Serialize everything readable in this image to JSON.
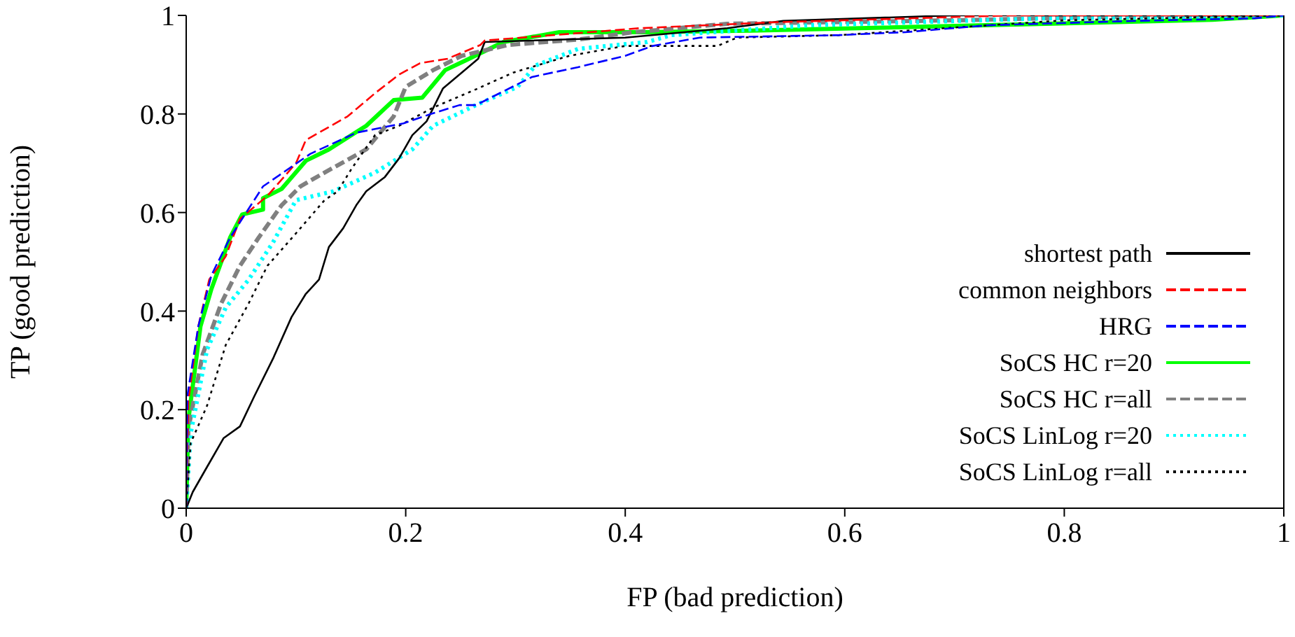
{
  "chart_data": {
    "type": "line",
    "xlabel": "FP (bad prediction)",
    "ylabel": "TP (good prediction)",
    "xlim": [
      0,
      1
    ],
    "ylim": [
      0,
      1
    ],
    "xticks": [
      0,
      0.2,
      0.4,
      0.6,
      0.8,
      1
    ],
    "yticks": [
      0,
      0.2,
      0.4,
      0.6,
      0.8,
      1
    ],
    "grid": false,
    "legend": "right",
    "marker": "none",
    "series": [
      {
        "name": "shortest path",
        "color": "#000000",
        "line_style": "solid",
        "x": [
          0,
          0.006,
          0.017,
          0.034,
          0.049,
          0.062,
          0.079,
          0.096,
          0.109,
          0.121,
          0.13,
          0.143,
          0.155,
          0.164,
          0.181,
          0.194,
          0.206,
          0.219,
          0.234,
          0.266,
          0.272,
          0.4,
          0.493,
          0.544,
          0.7,
          1
        ],
        "values": [
          0,
          0.033,
          0.076,
          0.142,
          0.166,
          0.227,
          0.303,
          0.388,
          0.435,
          0.464,
          0.53,
          0.568,
          0.615,
          0.643,
          0.672,
          0.71,
          0.757,
          0.785,
          0.852,
          0.912,
          0.946,
          0.955,
          0.974,
          0.989,
          1,
          1
        ]
      },
      {
        "name": "common neighbors",
        "color": "#ff0000",
        "line_style": "dashed",
        "x": [
          0,
          0.002,
          0.011,
          0.021,
          0.036,
          0.049,
          0.074,
          0.1,
          0.109,
          0.147,
          0.172,
          0.194,
          0.213,
          0.238,
          0.268,
          0.272,
          0.413,
          0.535,
          0.75,
          1
        ],
        "values": [
          0,
          0.218,
          0.369,
          0.464,
          0.511,
          0.587,
          0.634,
          0.7,
          0.747,
          0.795,
          0.842,
          0.88,
          0.903,
          0.912,
          0.94,
          0.949,
          0.974,
          0.986,
          1,
          1
        ]
      },
      {
        "name": "HRG",
        "color": "#0000ff",
        "line_style": "dashed",
        "x": [
          0,
          0.001,
          0.011,
          0.023,
          0.04,
          0.07,
          0.085,
          0.113,
          0.155,
          0.198,
          0.223,
          0.249,
          0.264,
          0.315,
          0.357,
          0.4,
          0.425,
          0.468,
          0.595,
          0.655,
          0.731,
          0.866,
          0.973,
          1
        ],
        "values": [
          0,
          0.227,
          0.369,
          0.473,
          0.549,
          0.653,
          0.676,
          0.719,
          0.762,
          0.781,
          0.8,
          0.818,
          0.818,
          0.875,
          0.895,
          0.918,
          0.938,
          0.955,
          0.96,
          0.966,
          0.98,
          0.989,
          0.994,
          1
        ]
      },
      {
        "name": "SoCS HC r=20",
        "color": "#00ff00",
        "line_style": "solid",
        "x": [
          0,
          0.002,
          0.013,
          0.023,
          0.04,
          0.051,
          0.07,
          0.07,
          0.087,
          0.109,
          0.13,
          0.164,
          0.189,
          0.215,
          0.236,
          0.255,
          0.289,
          0.34,
          0.417,
          0.515,
          0.935,
          1
        ],
        "values": [
          0,
          0.18,
          0.369,
          0.445,
          0.549,
          0.596,
          0.606,
          0.629,
          0.648,
          0.705,
          0.728,
          0.776,
          0.828,
          0.833,
          0.889,
          0.909,
          0.946,
          0.966,
          0.966,
          0.969,
          0.991,
          1
        ]
      },
      {
        "name": "SoCS HC r=all",
        "color": "#808080",
        "line_style": "dashed",
        "x": [
          0,
          0.002,
          0.015,
          0.032,
          0.049,
          0.066,
          0.087,
          0.104,
          0.126,
          0.164,
          0.189,
          0.2,
          0.225,
          0.251,
          0.293,
          0.357,
          0.408,
          0.493,
          0.7,
          0.9,
          1
        ],
        "values": [
          0,
          0.161,
          0.312,
          0.416,
          0.492,
          0.549,
          0.615,
          0.653,
          0.681,
          0.728,
          0.795,
          0.855,
          0.889,
          0.918,
          0.94,
          0.951,
          0.966,
          0.983,
          0.99,
          1,
          1
        ]
      },
      {
        "name": "SoCS LinLog r=20",
        "color": "#00ffff",
        "line_style": "dotted",
        "x": [
          0,
          0.004,
          0.019,
          0.036,
          0.057,
          0.079,
          0.1,
          0.134,
          0.172,
          0.206,
          0.225,
          0.264,
          0.302,
          0.318,
          0.357,
          0.42,
          0.442,
          0.569,
          0.782,
          1
        ],
        "values": [
          0,
          0.151,
          0.322,
          0.407,
          0.464,
          0.539,
          0.625,
          0.643,
          0.681,
          0.728,
          0.776,
          0.818,
          0.855,
          0.898,
          0.932,
          0.946,
          0.96,
          0.98,
          0.994,
          1
        ]
      },
      {
        "name": "SoCS LinLog r=all",
        "color": "#000000",
        "line_style": "dotted",
        "x": [
          0,
          0.004,
          0.019,
          0.036,
          0.057,
          0.074,
          0.104,
          0.126,
          0.138,
          0.151,
          0.172,
          0.194,
          0.225,
          0.264,
          0.298,
          0.349,
          0.4,
          0.484,
          0.502,
          0.595,
          0.8,
          1
        ],
        "values": [
          0,
          0.132,
          0.208,
          0.331,
          0.416,
          0.492,
          0.568,
          0.625,
          0.643,
          0.69,
          0.757,
          0.776,
          0.813,
          0.85,
          0.884,
          0.918,
          0.938,
          0.938,
          0.955,
          0.96,
          0.99,
          1
        ]
      }
    ]
  }
}
